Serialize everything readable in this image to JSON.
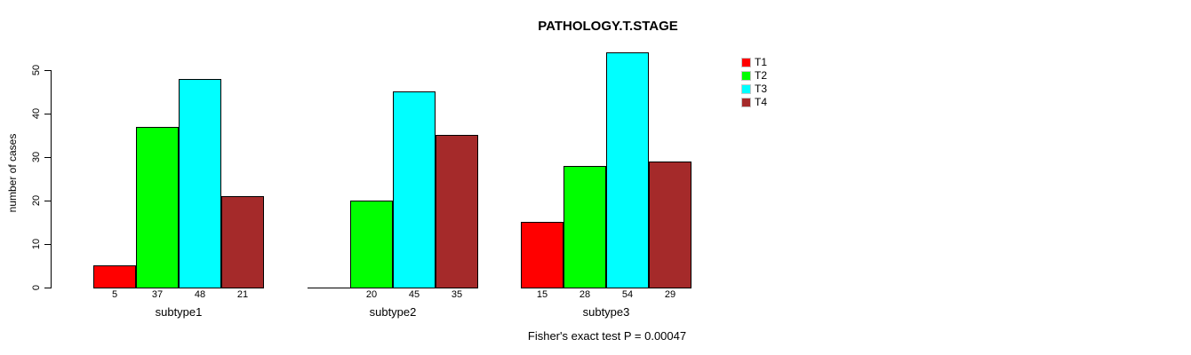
{
  "chart_data": {
    "type": "bar",
    "title": "PATHOLOGY.T.STAGE",
    "ylabel": "number of cases",
    "xlabel": "",
    "categories": [
      "subtype1",
      "subtype2",
      "subtype3"
    ],
    "series": [
      {
        "name": "T1",
        "color": "#ff0000",
        "values": [
          5,
          0,
          15
        ]
      },
      {
        "name": "T2",
        "color": "#00ff00",
        "values": [
          37,
          20,
          28
        ]
      },
      {
        "name": "T3",
        "color": "#00ffff",
        "values": [
          48,
          45,
          54
        ]
      },
      {
        "name": "T4",
        "color": "#a52a2a",
        "values": [
          21,
          35,
          29
        ]
      }
    ],
    "bar_value_labels": [
      [
        "5",
        "37",
        "48",
        "21"
      ],
      [
        "",
        "20",
        "45",
        "35"
      ],
      [
        "15",
        "28",
        "54",
        "29"
      ]
    ],
    "yticks": [
      0,
      10,
      20,
      30,
      40,
      50
    ],
    "ylim": [
      0,
      50
    ],
    "grid": false,
    "legend_position": "top-right",
    "legend_entries": [
      "T1",
      "T2",
      "T3",
      "T4"
    ],
    "caption": "Fisher's exact test P = 0.00047"
  }
}
